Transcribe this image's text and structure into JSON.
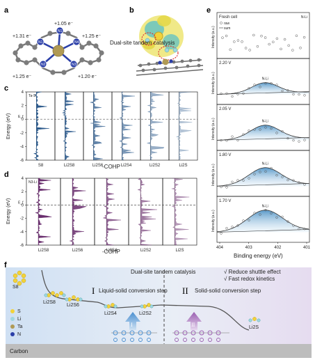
{
  "panels": {
    "a": {
      "label": "a",
      "charges": [
        "+1.05 e⁻",
        "+1.31 e⁻",
        "+1.25 e⁻",
        "+1.25 e⁻",
        "+1.20 e⁻"
      ],
      "atoms": [
        "N1",
        "N2",
        "N3",
        "N4",
        "Ta"
      ]
    },
    "b": {
      "label": "b",
      "annotation": "Dual-site tandem catalysis"
    },
    "c": {
      "label": "c",
      "ylabel": "Energy (eV)",
      "xlabel": "-COHP",
      "ef_label": "E_f",
      "title_tag": "Ta-S",
      "ticks": [
        "4",
        "2",
        "0",
        "-2",
        "-4",
        "-6"
      ],
      "columns": [
        "S8",
        "Li2S8",
        "Li2S6",
        "Li2S4",
        "Li2S2",
        "Li2S"
      ],
      "color": "#2c5a8c"
    },
    "d": {
      "label": "d",
      "ylabel": "Energy (eV)",
      "xlabel": "-COHP",
      "ef_label": "E_f",
      "title_tag": "N3-Li",
      "ticks": [
        "4",
        "2",
        "0",
        "-2",
        "-4",
        "-6"
      ],
      "columns": [
        "Li2S8",
        "Li2S6",
        "Li2S4",
        "Li2S2",
        "Li2S"
      ],
      "color": "#6a2f6e"
    },
    "e": {
      "label": "e",
      "xlabel": "Binding energy (eV)",
      "ylabel": "Intensity (a.u.)",
      "legend": [
        "raw",
        "sum"
      ],
      "xticks": [
        "404",
        "403",
        "402",
        "401"
      ],
      "subpanels": [
        {
          "tag": "Fresh cell",
          "right_tag": "N-Li",
          "peak": ""
        },
        {
          "tag": "2.20 V",
          "right_tag": "",
          "peak": "N-Li"
        },
        {
          "tag": "2.05 V",
          "right_tag": "",
          "peak": "N-Li"
        },
        {
          "tag": "1.80 V",
          "right_tag": "",
          "peak": "N-Li"
        },
        {
          "tag": "1.70 V",
          "right_tag": "",
          "peak": "N-Li"
        }
      ]
    },
    "f": {
      "label": "f",
      "title": "Dual-site tandem catalysis",
      "bullets": [
        "√ Reduce shuttle effect",
        "√ Fast redox kinetics"
      ],
      "stage1": {
        "numeral": "I",
        "text": "Liquid-solid conversion step"
      },
      "stage2": {
        "numeral": "II",
        "text": "Solid-solid conversion step"
      },
      "species": [
        "S8",
        "Li2S8",
        "Li2S6",
        "Li2S4",
        "Li2S2",
        "Li2S"
      ],
      "legend": [
        "S",
        "Li",
        "Ta",
        "N"
      ],
      "substrate": "Carbon",
      "arrow_numerals": [
        "I",
        "II"
      ]
    }
  },
  "colors": {
    "Ta": "#b09a55",
    "N": "#2b3fa8",
    "C": "#7c7c7c",
    "S": "#f2d23a",
    "Li": "#9fd6e0",
    "blue_fill": "#2f7fb6",
    "purple_fill": "#8a4a92"
  }
}
